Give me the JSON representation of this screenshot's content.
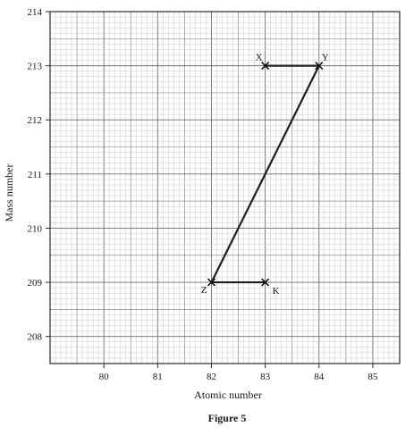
{
  "chart_data": {
    "type": "line",
    "title": "",
    "xlabel": "Atomic number",
    "ylabel": "Mass number",
    "caption": "Figure 5",
    "xlim": [
      79,
      85.5
    ],
    "ylim": [
      207.5,
      214
    ],
    "x_ticks": [
      80,
      81,
      82,
      83,
      84,
      85
    ],
    "y_ticks": [
      208,
      209,
      210,
      211,
      212,
      213,
      214
    ],
    "grid": true,
    "points": [
      {
        "label": "X",
        "x": 83,
        "y": 213
      },
      {
        "label": "Y",
        "x": 84,
        "y": 213
      },
      {
        "label": "Z",
        "x": 82,
        "y": 209
      },
      {
        "label": "K",
        "x": 83,
        "y": 209
      }
    ],
    "segments": [
      {
        "from": "X",
        "to": "Y"
      },
      {
        "from": "Y",
        "to": "Z"
      },
      {
        "from": "Z",
        "to": "K"
      }
    ]
  }
}
